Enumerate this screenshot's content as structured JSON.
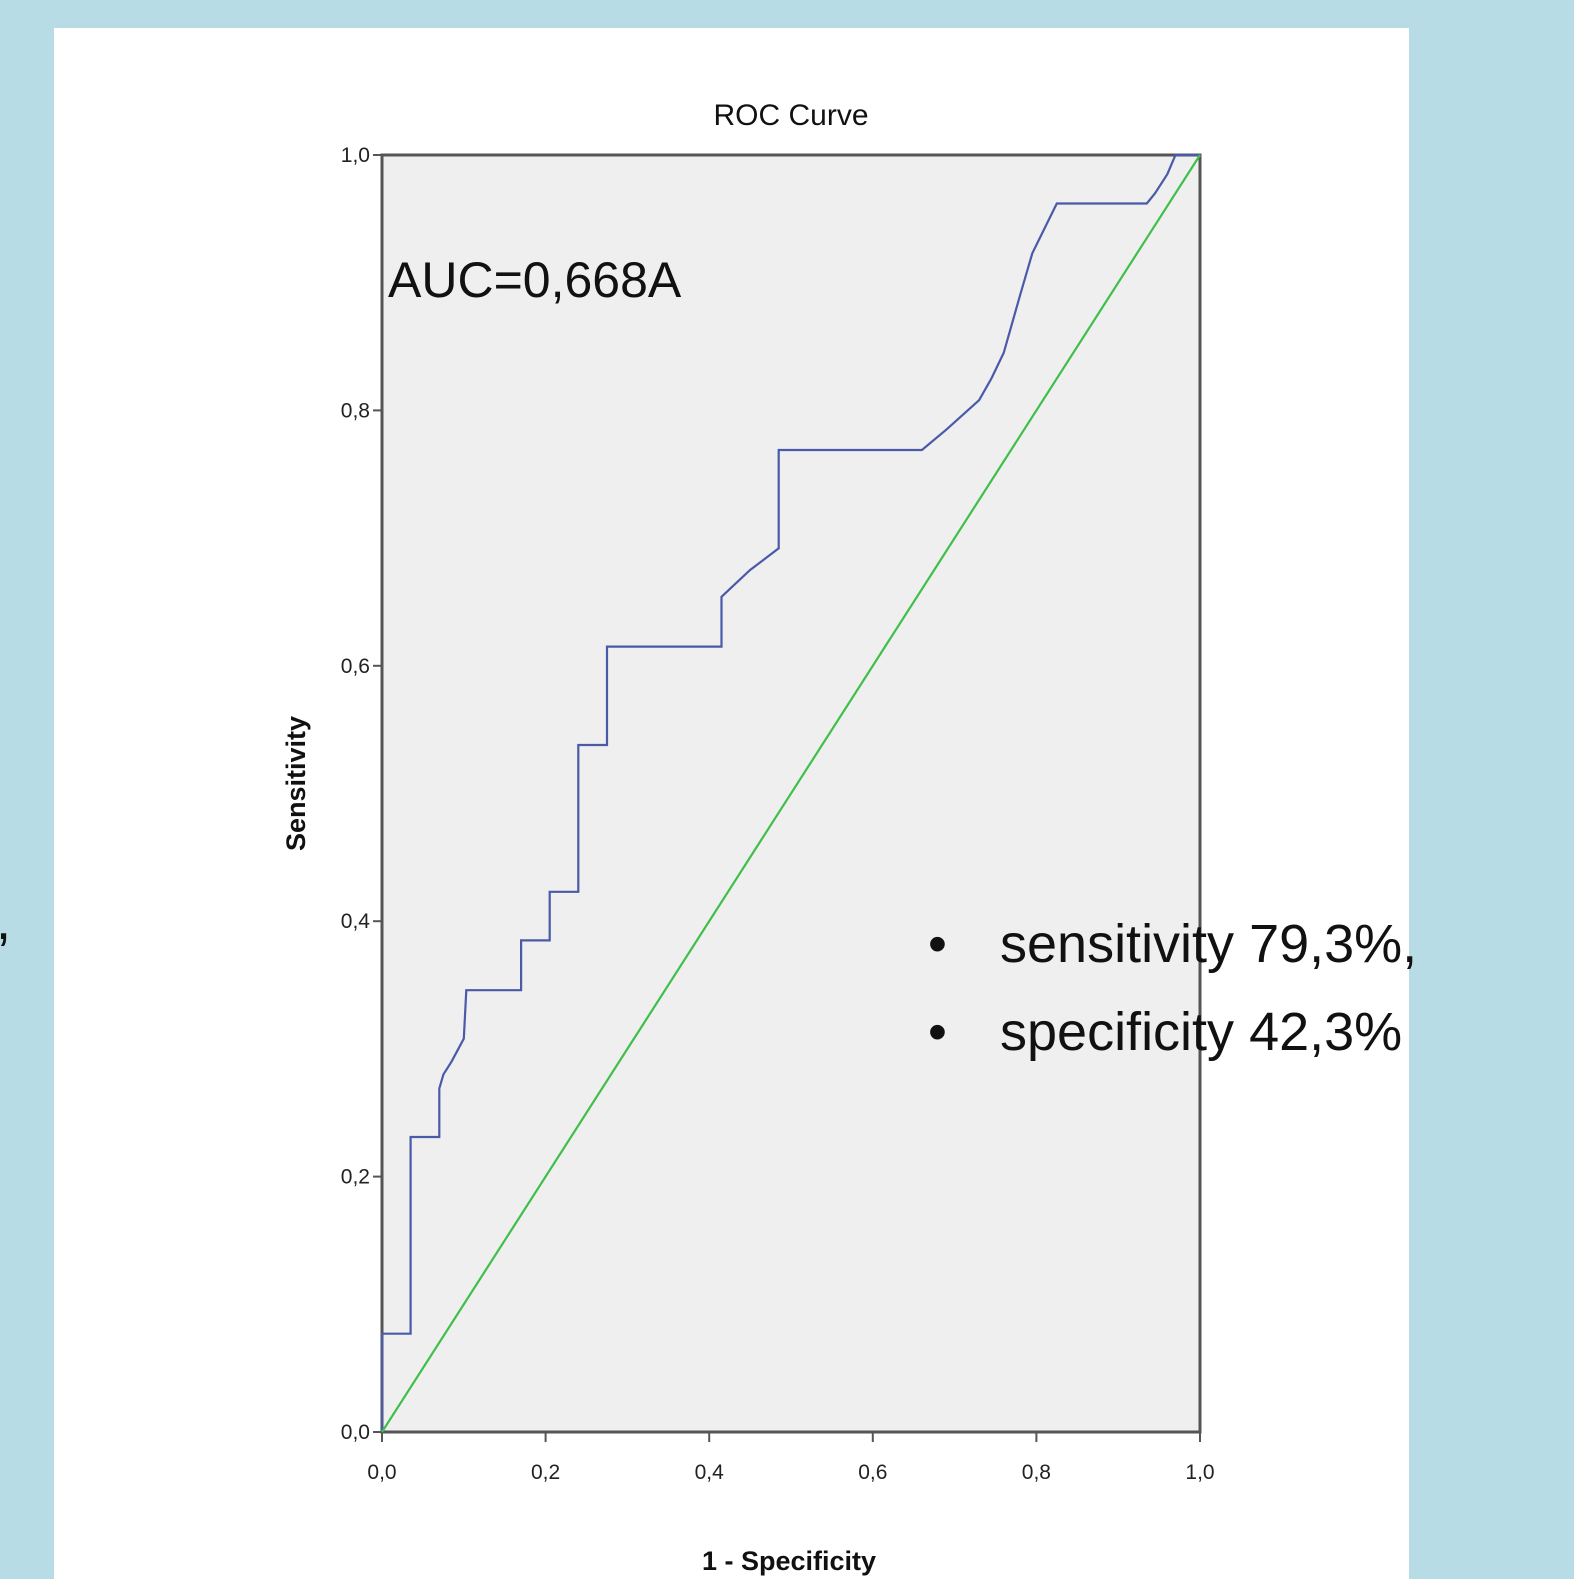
{
  "chart_data": {
    "type": "line",
    "title": "ROC Curve",
    "xlabel": "1 - Specificity",
    "ylabel": "Sensitivity",
    "xlim": [
      0,
      1
    ],
    "ylim": [
      0,
      1
    ],
    "x_ticks": [
      "0,0",
      "0,2",
      "0,4",
      "0,6",
      "0,8",
      "1,0"
    ],
    "y_ticks": [
      "0,0",
      "0,2",
      "0,4",
      "0,6",
      "0,8",
      "1,0"
    ],
    "grid": false,
    "series": [
      {
        "color": "#4a5aa8",
        "x": [
          0,
          0,
          0.035,
          0.035,
          0.07,
          0.07,
          0.075,
          0.085,
          0.1,
          0.103,
          0.103,
          0.17,
          0.17,
          0.205,
          0.205,
          0.24,
          0.24,
          0.275,
          0.275,
          0.415,
          0.415,
          0.425,
          0.45,
          0.485,
          0.485,
          0.66,
          0.69,
          0.73,
          0.745,
          0.76,
          0.78,
          0.795,
          0.825,
          0.935,
          0.945,
          0.96,
          0.97,
          1.0
        ],
        "y": [
          0,
          0.077,
          0.077,
          0.231,
          0.231,
          0.269,
          0.28,
          0.29,
          0.308,
          0.346,
          0.346,
          0.346,
          0.385,
          0.385,
          0.423,
          0.423,
          0.538,
          0.538,
          0.615,
          0.615,
          0.654,
          0.66,
          0.675,
          0.692,
          0.769,
          0.769,
          0.785,
          0.808,
          0.825,
          0.845,
          0.89,
          0.923,
          0.962,
          0.962,
          0.97,
          0.985,
          1.0,
          1.0
        ]
      },
      {
        "color": "#3fbf4a",
        "x": [
          0,
          1
        ],
        "y": [
          0,
          1
        ]
      }
    ],
    "annotations": [
      "AUC=0,668A"
    ]
  },
  "bullets": [
    "sensitivity 79,3%,",
    "specificity 42,3%"
  ],
  "bullet_symbol": "•",
  "edge_fragments": [
    ",",
    ""
  ]
}
